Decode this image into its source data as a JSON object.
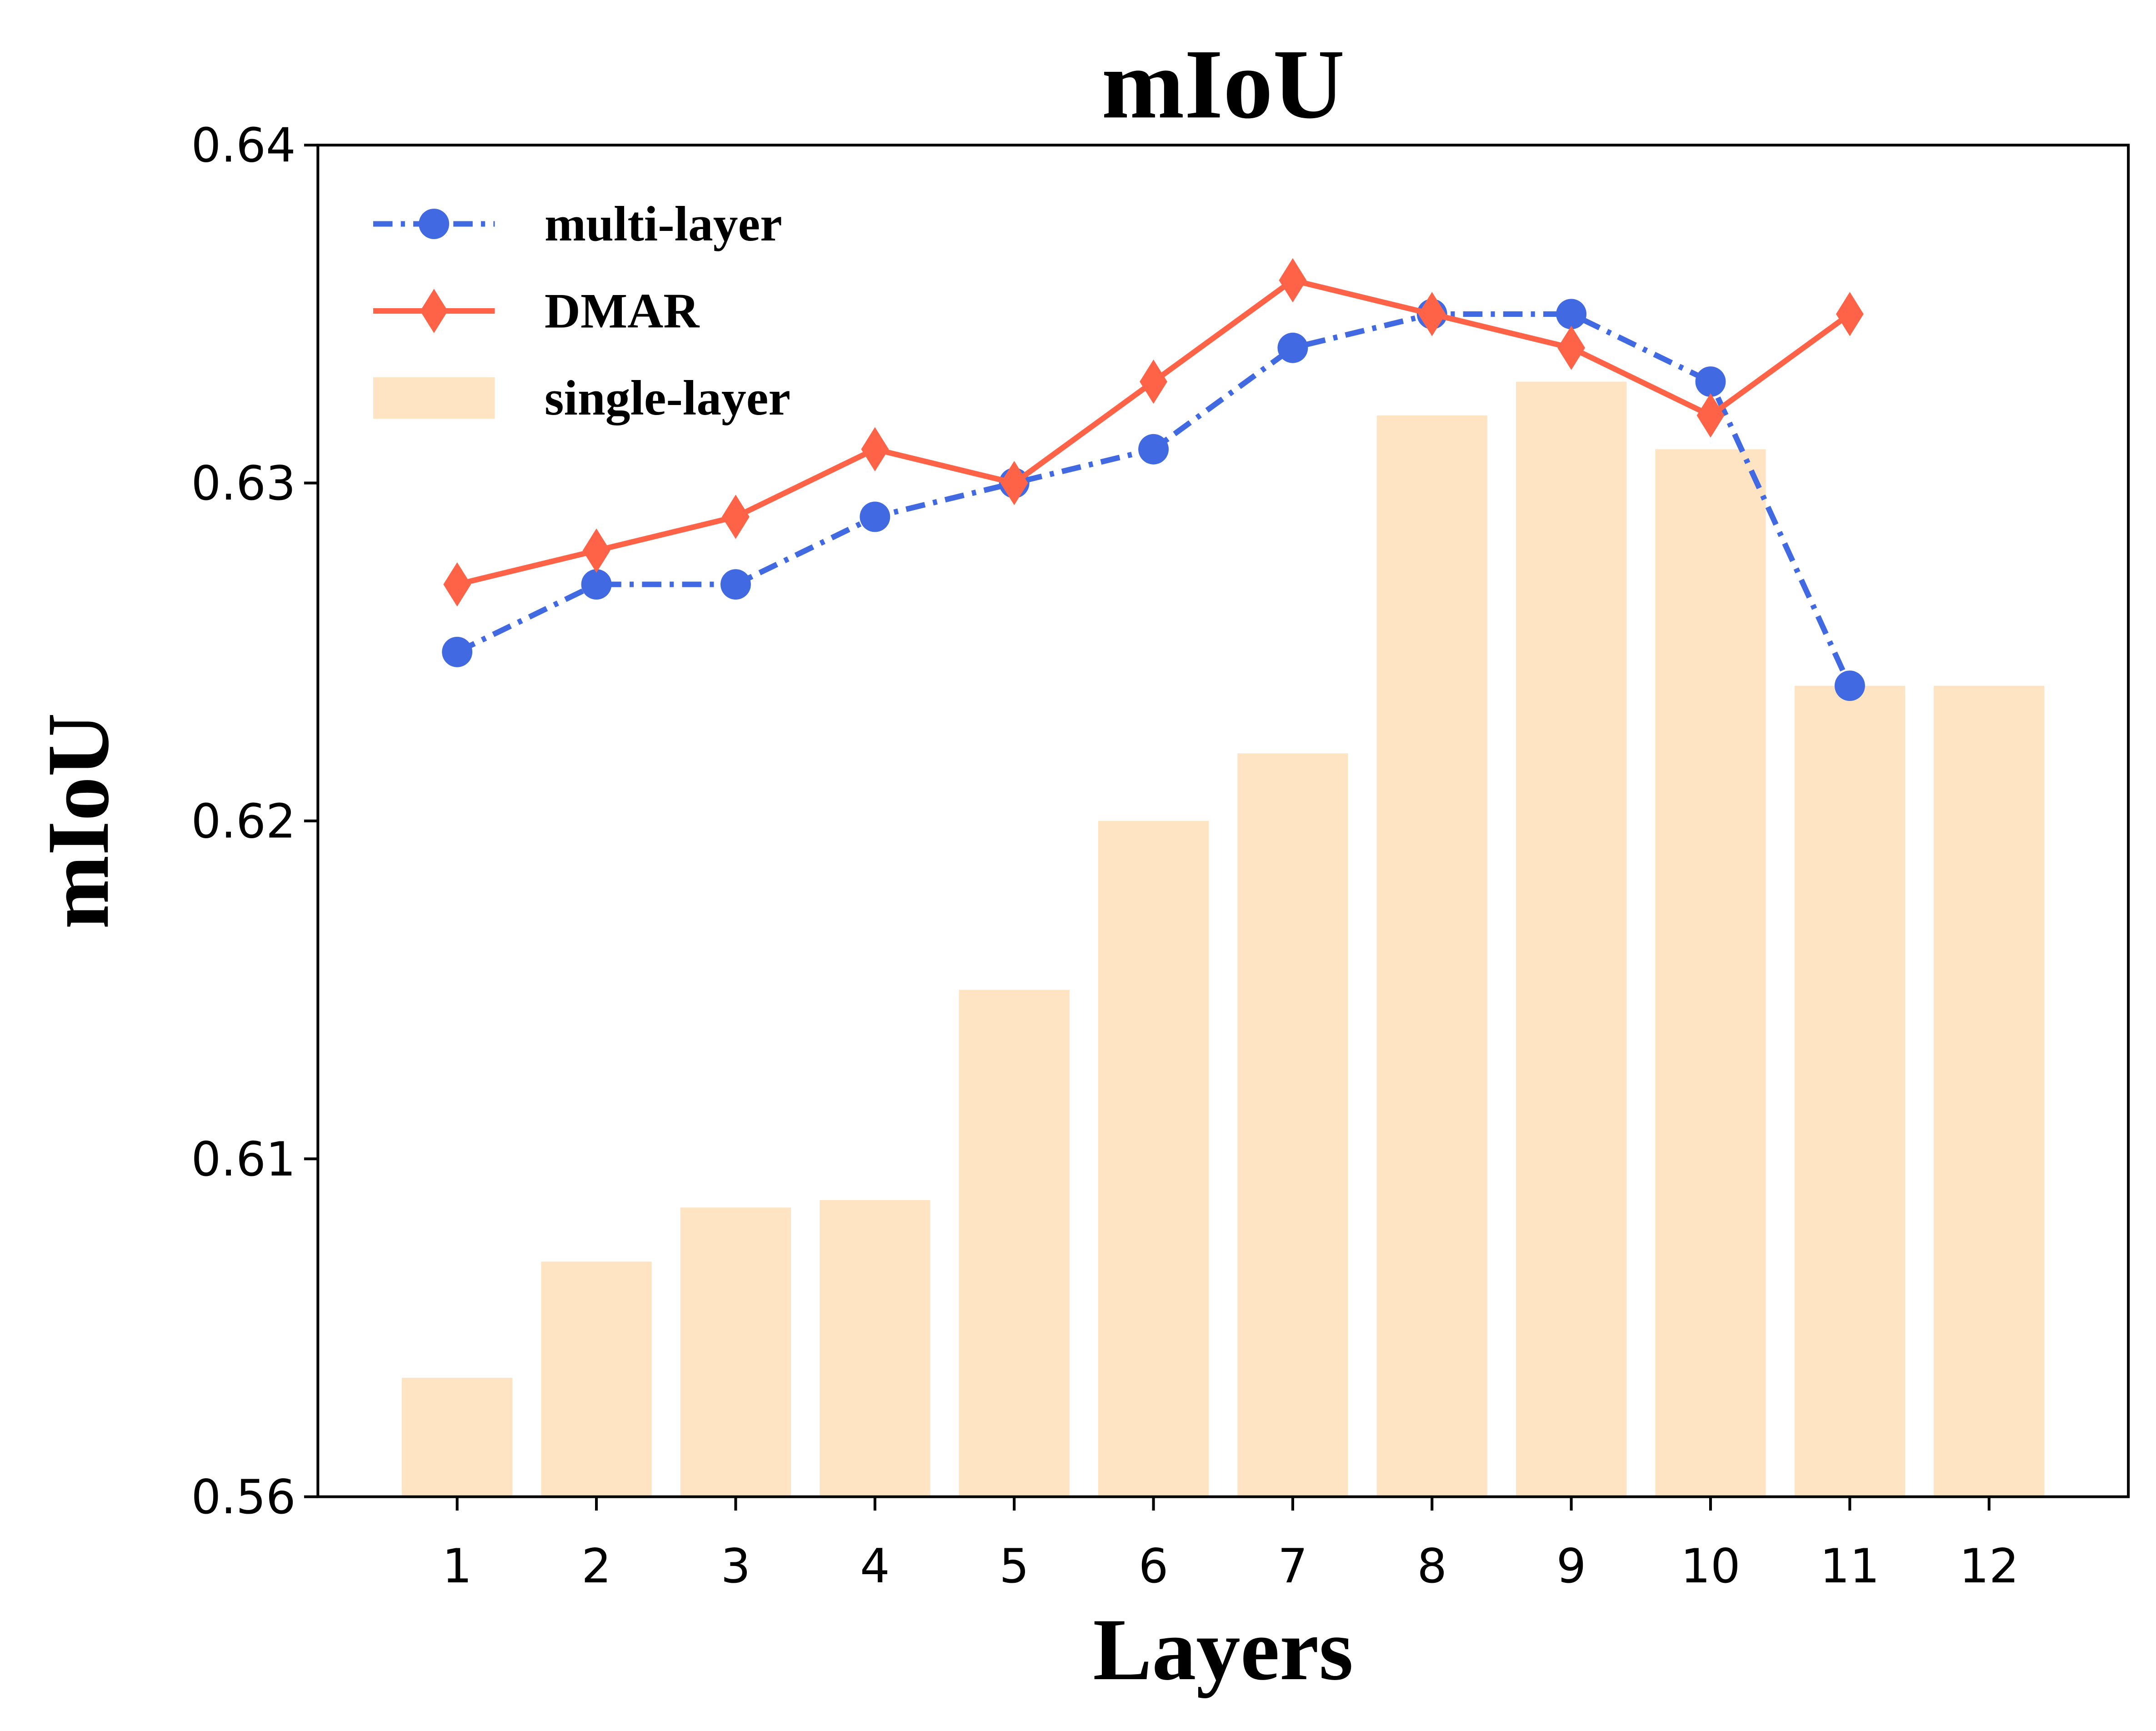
{
  "chart_data": {
    "type": "bar_line",
    "title": "mIoU",
    "xlabel": "Layers",
    "ylabel": "mIoU",
    "categories": [
      "1",
      "2",
      "3",
      "4",
      "5",
      "6",
      "7",
      "8",
      "9",
      "10",
      "11",
      "12"
    ],
    "series": [
      {
        "name": "multi-layer",
        "type": "line",
        "color": "#4169e1",
        "linestyle": "dashdot",
        "marker": "circle",
        "values": [
          0.625,
          0.627,
          0.627,
          0.629,
          0.63,
          0.631,
          0.634,
          0.635,
          0.635,
          0.633,
          0.624,
          null
        ]
      },
      {
        "name": "DMAR",
        "type": "line",
        "color": "#ff6347",
        "linestyle": "solid",
        "marker": "diamond",
        "values": [
          0.627,
          0.628,
          0.629,
          0.631,
          0.63,
          0.633,
          0.636,
          0.635,
          0.634,
          0.632,
          0.635,
          null
        ]
      },
      {
        "name": "single-layer",
        "type": "bar",
        "color": "#ffe4c4",
        "values": [
          0.5776,
          0.5948,
          0.6028,
          0.6039,
          0.615,
          0.62,
          0.622,
          0.632,
          0.633,
          0.631,
          0.624,
          0.624
        ]
      }
    ],
    "ylim": [
      0.56,
      0.64
    ],
    "yticks": [
      0.56,
      0.61,
      0.62,
      0.63,
      0.64
    ],
    "legend": "upper left"
  }
}
